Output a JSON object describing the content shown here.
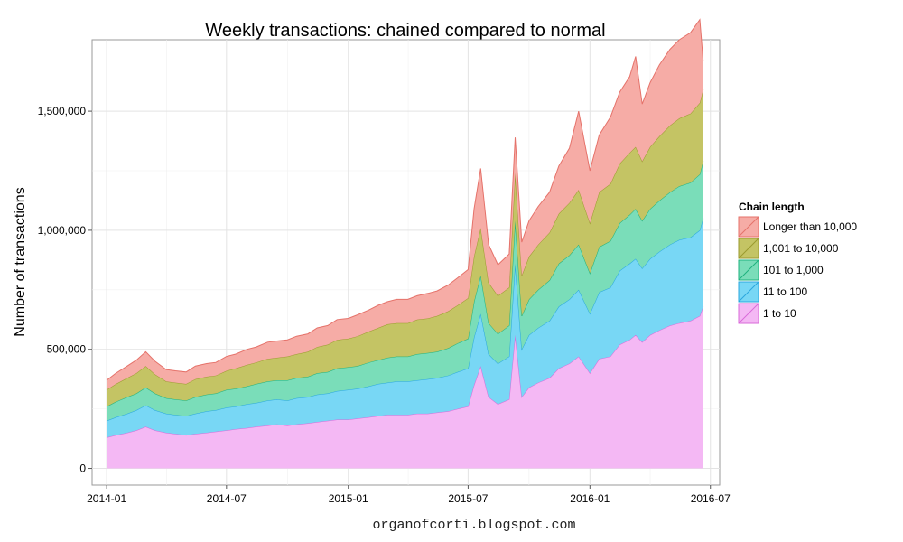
{
  "chart_data": {
    "type": "area",
    "stacked": true,
    "title": "Weekly transactions: chained compared to normal",
    "xlabel": "",
    "ylabel": "Number of transactions",
    "xlim": [
      "2013-12-10",
      "2016-07-15"
    ],
    "ylim": [
      -70000,
      1800000
    ],
    "x_ticks": [
      "2014-01",
      "2014-07",
      "2015-01",
      "2015-07",
      "2016-01",
      "2016-07"
    ],
    "y_ticks": [
      0,
      500000,
      1000000,
      1500000
    ],
    "y_tick_labels": [
      "0",
      "500,000",
      "1,000,000",
      "1,500,000"
    ],
    "grid": true,
    "legend": {
      "title": "Chain length",
      "position": "right"
    },
    "x": [
      "2014-01-01",
      "2014-01-15",
      "2014-02-01",
      "2014-02-15",
      "2014-03-01",
      "2014-03-15",
      "2014-04-01",
      "2014-04-15",
      "2014-05-01",
      "2014-05-15",
      "2014-06-01",
      "2014-06-15",
      "2014-07-01",
      "2014-07-15",
      "2014-08-01",
      "2014-08-15",
      "2014-09-01",
      "2014-09-15",
      "2014-10-01",
      "2014-10-15",
      "2014-11-01",
      "2014-11-15",
      "2014-12-01",
      "2014-12-15",
      "2015-01-01",
      "2015-01-15",
      "2015-02-01",
      "2015-02-15",
      "2015-03-01",
      "2015-03-15",
      "2015-04-01",
      "2015-04-15",
      "2015-05-01",
      "2015-05-15",
      "2015-06-01",
      "2015-06-15",
      "2015-07-01",
      "2015-07-10",
      "2015-07-20",
      "2015-08-01",
      "2015-08-15",
      "2015-09-01",
      "2015-09-10",
      "2015-09-20",
      "2015-10-01",
      "2015-10-15",
      "2015-11-01",
      "2015-11-15",
      "2015-12-01",
      "2015-12-15",
      "2016-01-01",
      "2016-01-15",
      "2016-02-01",
      "2016-02-15",
      "2016-03-01",
      "2016-03-10",
      "2016-03-20",
      "2016-04-01",
      "2016-04-15",
      "2016-05-01",
      "2016-05-15",
      "2016-06-01",
      "2016-06-15",
      "2016-06-20"
    ],
    "series": [
      {
        "name": "1 to 10",
        "color": "#F4B8F4",
        "values": [
          130000,
          140000,
          150000,
          160000,
          175000,
          160000,
          150000,
          145000,
          140000,
          145000,
          150000,
          155000,
          160000,
          165000,
          170000,
          175000,
          180000,
          185000,
          180000,
          185000,
          190000,
          195000,
          200000,
          205000,
          205000,
          210000,
          215000,
          220000,
          225000,
          225000,
          225000,
          230000,
          230000,
          235000,
          240000,
          250000,
          260000,
          350000,
          430000,
          300000,
          270000,
          290000,
          560000,
          300000,
          340000,
          360000,
          380000,
          420000,
          440000,
          470000,
          400000,
          460000,
          470000,
          520000,
          540000,
          560000,
          530000,
          560000,
          580000,
          600000,
          610000,
          620000,
          640000,
          680000
        ]
      },
      {
        "name": "11 to 100",
        "color": "#78D7F5",
        "values": [
          70000,
          75000,
          80000,
          85000,
          90000,
          85000,
          80000,
          80000,
          80000,
          85000,
          90000,
          90000,
          95000,
          95000,
          100000,
          100000,
          105000,
          105000,
          105000,
          110000,
          110000,
          115000,
          115000,
          120000,
          125000,
          125000,
          130000,
          135000,
          135000,
          140000,
          140000,
          140000,
          145000,
          145000,
          150000,
          155000,
          160000,
          200000,
          220000,
          180000,
          170000,
          180000,
          300000,
          200000,
          220000,
          230000,
          240000,
          260000,
          270000,
          280000,
          250000,
          280000,
          290000,
          310000,
          320000,
          320000,
          310000,
          320000,
          330000,
          340000,
          350000,
          350000,
          360000,
          370000
        ]
      },
      {
        "name": "101 to 1,000",
        "color": "#7ADDB9",
        "values": [
          60000,
          65000,
          70000,
          70000,
          75000,
          70000,
          65000,
          65000,
          65000,
          70000,
          70000,
          70000,
          75000,
          75000,
          75000,
          80000,
          80000,
          80000,
          85000,
          85000,
          85000,
          90000,
          90000,
          95000,
          95000,
          95000,
          100000,
          100000,
          105000,
          105000,
          105000,
          110000,
          110000,
          110000,
          115000,
          120000,
          125000,
          150000,
          160000,
          130000,
          125000,
          130000,
          180000,
          140000,
          150000,
          160000,
          170000,
          180000,
          185000,
          190000,
          170000,
          190000,
          195000,
          200000,
          205000,
          210000,
          200000,
          210000,
          215000,
          220000,
          225000,
          230000,
          235000,
          240000
        ]
      },
      {
        "name": "1,001 to 10,000",
        "color": "#C4C464",
        "values": [
          70000,
          75000,
          80000,
          85000,
          90000,
          80000,
          70000,
          70000,
          70000,
          75000,
          75000,
          75000,
          80000,
          85000,
          90000,
          90000,
          95000,
          95000,
          100000,
          100000,
          105000,
          110000,
          115000,
          120000,
          120000,
          125000,
          130000,
          135000,
          140000,
          140000,
          140000,
          145000,
          145000,
          150000,
          155000,
          160000,
          170000,
          190000,
          200000,
          170000,
          160000,
          160000,
          200000,
          170000,
          180000,
          190000,
          200000,
          210000,
          220000,
          230000,
          210000,
          230000,
          240000,
          250000,
          260000,
          260000,
          250000,
          260000,
          270000,
          280000,
          285000,
          290000,
          300000,
          300000
        ]
      },
      {
        "name": "Longer than 10,000",
        "color": "#F6ACA6",
        "values": [
          40000,
          45000,
          50000,
          55000,
          60000,
          55000,
          50000,
          50000,
          50000,
          55000,
          55000,
          55000,
          60000,
          60000,
          65000,
          65000,
          70000,
          70000,
          70000,
          75000,
          75000,
          80000,
          80000,
          85000,
          85000,
          90000,
          90000,
          95000,
          95000,
          100000,
          100000,
          100000,
          105000,
          105000,
          110000,
          115000,
          120000,
          200000,
          250000,
          160000,
          130000,
          140000,
          150000,
          140000,
          150000,
          160000,
          170000,
          200000,
          230000,
          330000,
          220000,
          240000,
          280000,
          300000,
          320000,
          380000,
          240000,
          270000,
          300000,
          320000,
          330000,
          340000,
          350000,
          120000
        ]
      }
    ],
    "caption": "organofcorti.blogspot.com"
  }
}
